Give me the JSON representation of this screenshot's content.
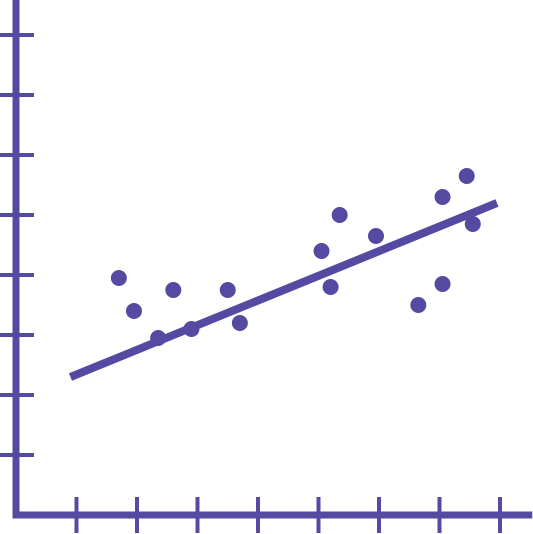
{
  "colors": {
    "accent": "#544aa1",
    "background": "#ffffff"
  },
  "chart_data": {
    "type": "scatter",
    "title": "",
    "xlabel": "",
    "ylabel": "",
    "grid": false,
    "legend": "none",
    "xlim": [
      0,
      8.5
    ],
    "ylim": [
      0,
      8.5
    ],
    "x_ticks": [
      1,
      2,
      3,
      4,
      5,
      6,
      7,
      8
    ],
    "y_ticks": [
      1,
      2,
      3,
      4,
      5,
      6,
      7,
      8
    ],
    "series": [
      {
        "name": "",
        "kind": "scatter",
        "x": [
          1.7,
          1.95,
          2.35,
          2.6,
          2.9,
          3.5,
          3.7,
          5.05,
          5.2,
          5.35,
          5.95,
          6.65,
          7.05,
          7.05,
          7.45,
          7.55
        ],
        "y": [
          3.95,
          3.4,
          2.95,
          3.75,
          3.1,
          3.75,
          3.2,
          4.4,
          3.8,
          5.0,
          4.65,
          3.5,
          3.85,
          5.3,
          5.65,
          4.85
        ]
      },
      {
        "name": "",
        "kind": "trend_line",
        "x": [
          0.9,
          7.95
        ],
        "y": [
          2.3,
          5.2
        ]
      }
    ]
  }
}
